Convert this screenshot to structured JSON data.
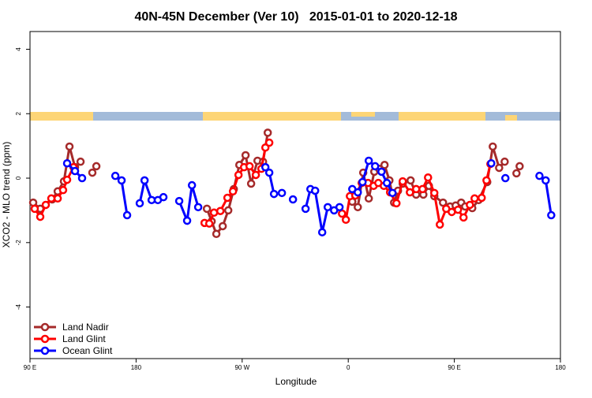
{
  "chart_data": {
    "type": "line",
    "title": "40N-45N December (Ver 10)   2015-01-01 to 2020-12-18",
    "x_label": "Longitude",
    "y_label": "XCO2 - MLO trend (ppm)",
    "xlim": [
      90,
      540
    ],
    "xticks": [
      {
        "value": 90,
        "label": "90 E"
      },
      180,
      {
        "value": 270,
        "label": "90 W"
      },
      {
        "value": 360,
        "label": "0"
      },
      {
        "value": 450,
        "label": "90 E"
      },
      {
        "value": 540,
        "label": "180"
      }
    ],
    "ylim": [
      -5.6,
      4.55
    ],
    "yticks": [
      -4,
      -2,
      0,
      2,
      4
    ],
    "legend": "bottomleft",
    "series": [
      {
        "name": "Land Nadir",
        "color": "#a52a2a",
        "x": [
          92.7,
          98.7,
          108.8,
          113.5,
          118.8,
          123.5,
          128.2,
          132.9,
          null,
          142.9,
          146.3,
          null,
          240.1,
          244.1,
          248.1,
          253.5,
          258.2,
          262.9,
          267.6,
          272.9,
          277.6,
          283.0,
          287.7,
          291.7,
          null,
          363.4,
          368.1,
          372.7,
          377.4,
          382.1,
          386.1,
          390.8,
          394.9,
          398.9,
          402.2,
          406.2,
          412.9,
          417.6,
          423.7,
          428.4,
          433.0,
          440.4,
          446.4,
          451.1,
          455.8,
          459.2,
          465.2,
          470.6,
          477.9,
          482.6,
          488.0,
          492.7,
          null,
          502.7,
          505.4
        ],
        "values": [
          -0.76,
          -0.95,
          -0.66,
          -0.41,
          -0.1,
          0.98,
          0.34,
          0.51,
          null,
          0.17,
          0.37,
          null,
          -0.95,
          -1.34,
          -1.73,
          -1.49,
          -1.0,
          -0.34,
          0.41,
          0.71,
          -0.17,
          0.54,
          0.51,
          1.41,
          null,
          -0.73,
          -0.9,
          0.17,
          -0.63,
          0.2,
          0.29,
          0.41,
          -0.07,
          -0.76,
          -0.39,
          -0.17,
          -0.07,
          -0.51,
          -0.51,
          -0.24,
          -0.56,
          -0.76,
          -0.88,
          -0.85,
          -0.76,
          -0.88,
          -0.93,
          -0.68,
          -0.12,
          0.98,
          0.32,
          0.51,
          null,
          0.15,
          0.37
        ]
      },
      {
        "name": "Land Glint",
        "color": "#ff0000",
        "x": [
          94.0,
          98.7,
          103.4,
          108.1,
          113.5,
          118.1,
          121.5,
          126.9,
          null,
          238.1,
          242.1,
          246.1,
          251.5,
          257.5,
          262.2,
          266.9,
          271.6,
          276.3,
          281.6,
          286.3,
          289.7,
          293.0,
          null,
          354.7,
          358.0,
          361.4,
          366.0,
          371.4,
          376.8,
          381.5,
          385.5,
          390.2,
          395.5,
          400.9,
          406.2,
          412.3,
          417.6,
          423.0,
          427.7,
          433.0,
          437.7,
          443.1,
          447.8,
          453.1,
          457.8,
          463.2,
          467.2,
          473.2,
          477.3,
          480.6
        ],
        "values": [
          -0.95,
          -1.2,
          -0.83,
          -0.63,
          -0.63,
          -0.37,
          -0.05,
          0.34,
          null,
          -1.39,
          -1.41,
          -1.07,
          -1.02,
          -0.61,
          -0.41,
          0.1,
          0.34,
          0.37,
          0.1,
          0.29,
          0.95,
          1.1,
          null,
          -1.1,
          -1.29,
          -0.56,
          -0.54,
          -0.15,
          -0.15,
          -0.24,
          -0.15,
          -0.24,
          -0.44,
          -0.78,
          -0.1,
          -0.44,
          -0.34,
          -0.34,
          0.02,
          -0.46,
          -1.44,
          -0.95,
          -1.05,
          -0.98,
          -1.22,
          -0.83,
          -0.63,
          -0.61,
          -0.07,
          0.44
        ]
      },
      {
        "name": "Ocean Glint",
        "color": "#0000ff",
        "x": [
          121.5,
          128.2,
          134.2,
          null,
          162.4,
          167.7,
          172.4,
          null,
          183.1,
          187.2,
          193.2,
          198.5,
          203.2,
          null,
          216.6,
          223.3,
          227.4,
          232.7,
          null,
          289.7,
          293.0,
          297.0,
          303.7,
          null,
          313.1,
          null,
          323.8,
          327.9,
          331.9,
          337.9,
          342.6,
          348.0,
          352.6,
          null,
          363.4,
          368.1,
          372.1,
          377.4,
          382.8,
          388.2,
          392.8,
          397.5,
          null,
          481.3,
          null,
          493.3,
          null,
          522.2,
          527.5,
          532.2
        ],
        "values": [
          0.46,
          0.22,
          0.0,
          null,
          0.07,
          -0.07,
          -1.15,
          null,
          -0.78,
          -0.07,
          -0.68,
          -0.68,
          -0.59,
          null,
          -0.71,
          -1.32,
          -0.22,
          -0.9,
          null,
          0.34,
          0.17,
          -0.49,
          -0.46,
          null,
          -0.66,
          null,
          -0.95,
          -0.34,
          -0.39,
          -1.68,
          -0.9,
          -1.0,
          -0.9,
          null,
          -0.34,
          -0.44,
          -0.12,
          0.54,
          0.37,
          0.2,
          -0.15,
          -0.46,
          null,
          0.46,
          null,
          0.0,
          null,
          0.07,
          -0.07,
          -1.15
        ]
      }
    ]
  }
}
